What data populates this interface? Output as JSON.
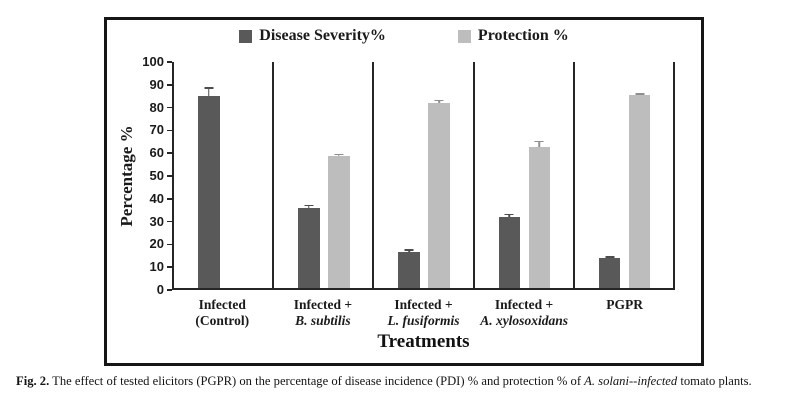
{
  "figure": {
    "caption_prefix": "Fig. 2.",
    "caption_text": " The effect of tested elicitors (PGPR) on the percentage of disease incidence (PDI) % and protection % of ",
    "caption_italic": "A. solani--infected",
    "caption_suffix": " tomato plants."
  },
  "chart_data": {
    "type": "bar",
    "title": "",
    "xlabel": "Treatments",
    "ylabel": "Percentage %",
    "ylim": [
      0,
      100
    ],
    "yticks": [
      0,
      10,
      20,
      30,
      40,
      50,
      60,
      70,
      80,
      90,
      100
    ],
    "grid": "vertical category separators only",
    "legend_position": "top-center",
    "legend": [
      {
        "label": "Disease Severity%",
        "color": "#595959"
      },
      {
        "label": "Protection %",
        "color": "#bdbdbd"
      }
    ],
    "categories": [
      {
        "line1": "Infected",
        "line2": "(Control)",
        "line2_italic": false
      },
      {
        "line1": "Infected +",
        "line2": "B. subtilis",
        "line2_italic": true
      },
      {
        "line1": "Infected +",
        "line2": "L. fusiformis",
        "line2_italic": true
      },
      {
        "line1": "Infected +",
        "line2": "A. xylosoxidans",
        "line2_italic": true
      },
      {
        "line1": "PGPR",
        "line2": "",
        "line2_italic": false
      }
    ],
    "series": [
      {
        "name": "Disease Severity%",
        "color": "#595959",
        "error_color": "#4d4d4d",
        "values": [
          84,
          35,
          16,
          31,
          13
        ],
        "errors": [
          4,
          1.5,
          1,
          1.5,
          1
        ]
      },
      {
        "name": "Protection %",
        "color": "#bdbdbd",
        "error_color": "#8f8f8f",
        "values": [
          null,
          58,
          81,
          62,
          84.5
        ],
        "errors": [
          null,
          1,
          1.5,
          2.5,
          1
        ]
      }
    ]
  }
}
